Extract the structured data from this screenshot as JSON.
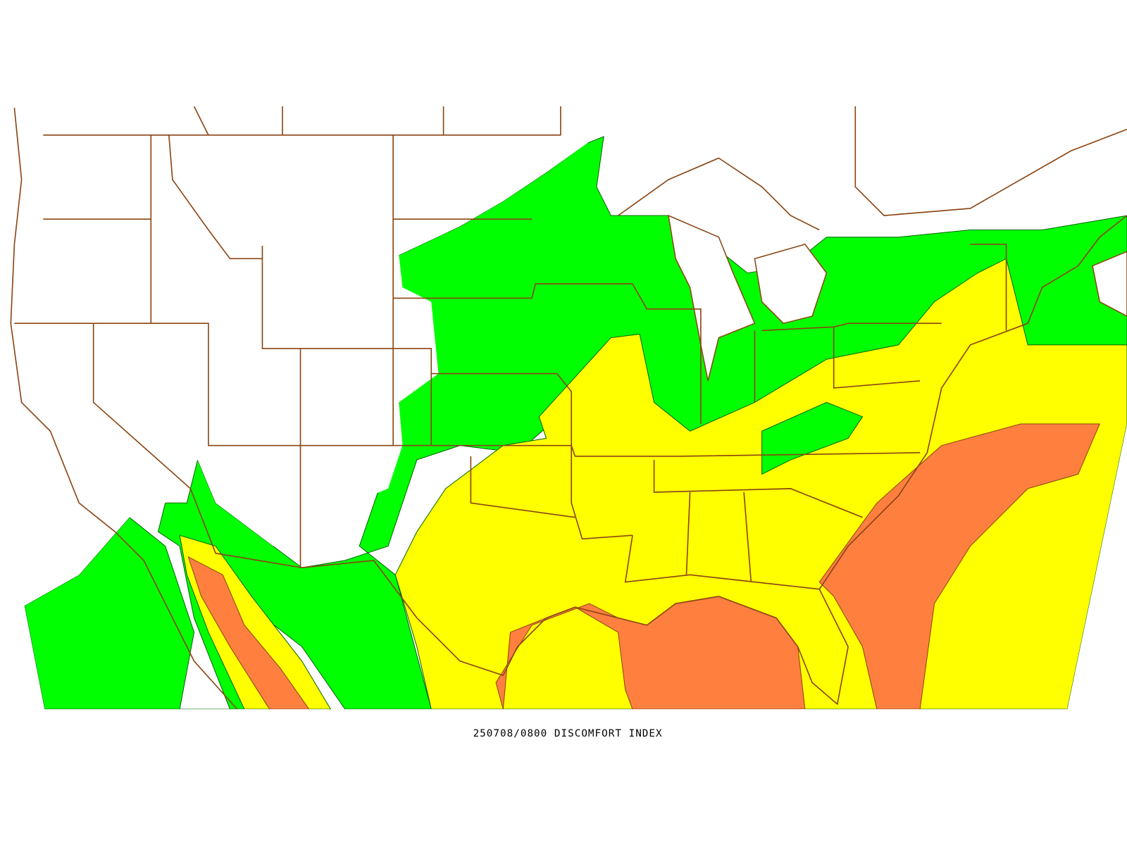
{
  "caption": "250708/0800 DISCOMFORT INDEX"
}
